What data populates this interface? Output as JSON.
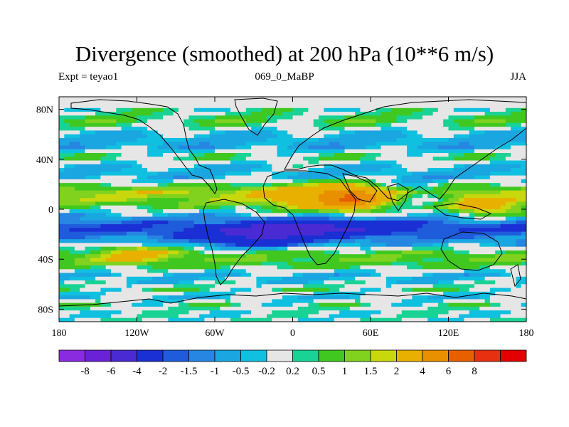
{
  "header": {
    "title": "Divergence (smoothed) at 200 hPa (10**6 m/s)",
    "left_label": "Expt = teyao1",
    "center_label": "069_0_MaBP",
    "right_label": "JJA"
  },
  "chart_data": {
    "type": "heatmap",
    "title": "Divergence (smoothed) at 200 hPa (10**6 m/s)",
    "xlabel": "",
    "ylabel": "",
    "xlim": [
      -180,
      180
    ],
    "ylim": [
      -90,
      90
    ],
    "x_ticks": [
      {
        "value": -180,
        "label": "180"
      },
      {
        "value": -120,
        "label": "120W"
      },
      {
        "value": -60,
        "label": "60W"
      },
      {
        "value": 0,
        "label": "0"
      },
      {
        "value": 60,
        "label": "60E"
      },
      {
        "value": 120,
        "label": "120E"
      },
      {
        "value": 180,
        "label": "180"
      }
    ],
    "y_ticks": [
      {
        "value": 80,
        "label": "80N"
      },
      {
        "value": 40,
        "label": "40N"
      },
      {
        "value": 0,
        "label": "0"
      },
      {
        "value": -40,
        "label": "40S"
      },
      {
        "value": -80,
        "label": "80S"
      }
    ],
    "colorbar": {
      "colors": [
        "#8b2be0",
        "#6a22d8",
        "#4a2ad2",
        "#1a2fd4",
        "#1f5cdc",
        "#2686e2",
        "#1aa6e0",
        "#10c0e0",
        "#e6e6e6",
        "#18d394",
        "#40c820",
        "#80d21e",
        "#c8d80c",
        "#e8b000",
        "#e89000",
        "#e66000",
        "#e63010",
        "#e40000"
      ],
      "labels": [
        "-8",
        "-6",
        "-4",
        "-2",
        "-1.5",
        "-1",
        "-0.5",
        "-0.2",
        "0.2",
        "0.5",
        "1",
        "1.5",
        "2",
        "4",
        "6",
        "8"
      ]
    },
    "bands": [
      {
        "lat": 80,
        "value": 0.1,
        "seed": 1
      },
      {
        "lat": 70,
        "value": 0.6,
        "seed": 2
      },
      {
        "lat": 60,
        "value": -0.5,
        "seed": 3
      },
      {
        "lat": 50,
        "value": -0.7,
        "seed": 4
      },
      {
        "lat": 42,
        "value": 0.4,
        "seed": 5
      },
      {
        "lat": 34,
        "value": -0.4,
        "seed": 6
      },
      {
        "lat": 26,
        "value": -0.6,
        "seed": 7
      },
      {
        "lat": 20,
        "value": 0.3,
        "seed": 8
      },
      {
        "lat": 14,
        "value": 1.6,
        "seed": 9
      },
      {
        "lat": 8,
        "value": 1.3,
        "seed": 10
      },
      {
        "lat": 2,
        "value": 0.6,
        "seed": 11
      },
      {
        "lat": -4,
        "value": -0.5,
        "seed": 12
      },
      {
        "lat": -10,
        "value": -1.5,
        "seed": 13
      },
      {
        "lat": -16,
        "value": -2.2,
        "seed": 14
      },
      {
        "lat": -22,
        "value": -1.4,
        "seed": 15
      },
      {
        "lat": -28,
        "value": -0.7,
        "seed": 16
      },
      {
        "lat": -34,
        "value": 0.6,
        "seed": 17
      },
      {
        "lat": -40,
        "value": 1.0,
        "seed": 18
      },
      {
        "lat": -46,
        "value": 0.5,
        "seed": 19
      },
      {
        "lat": -52,
        "value": -0.5,
        "seed": 20
      },
      {
        "lat": -58,
        "value": -0.3,
        "seed": 21
      },
      {
        "lat": -64,
        "value": 0.3,
        "seed": 22
      },
      {
        "lat": -70,
        "value": -0.4,
        "seed": 23
      },
      {
        "lat": -76,
        "value": 0.2,
        "seed": 24
      },
      {
        "lat": -84,
        "value": 0.0,
        "seed": 25
      },
      {
        "lat": -90,
        "value": 0.0,
        "seed": 26
      }
    ],
    "anomalies": [
      {
        "lon": 45,
        "lat": 8,
        "value": 4.2,
        "w": 24,
        "h": 10
      },
      {
        "lon": 10,
        "lat": 10,
        "value": 1.6,
        "w": 36,
        "h": 12
      },
      {
        "lon": 150,
        "lat": 0,
        "value": 2.2,
        "w": 28,
        "h": 8
      },
      {
        "lon": -30,
        "lat": -22,
        "value": -3.0,
        "w": 40,
        "h": 8
      },
      {
        "lon": 20,
        "lat": -15,
        "value": -2.5,
        "w": 50,
        "h": 7
      },
      {
        "lon": 100,
        "lat": 12,
        "value": -1.2,
        "w": 20,
        "h": 10
      },
      {
        "lon": -120,
        "lat": -35,
        "value": 1.8,
        "w": 30,
        "h": 8
      }
    ]
  }
}
